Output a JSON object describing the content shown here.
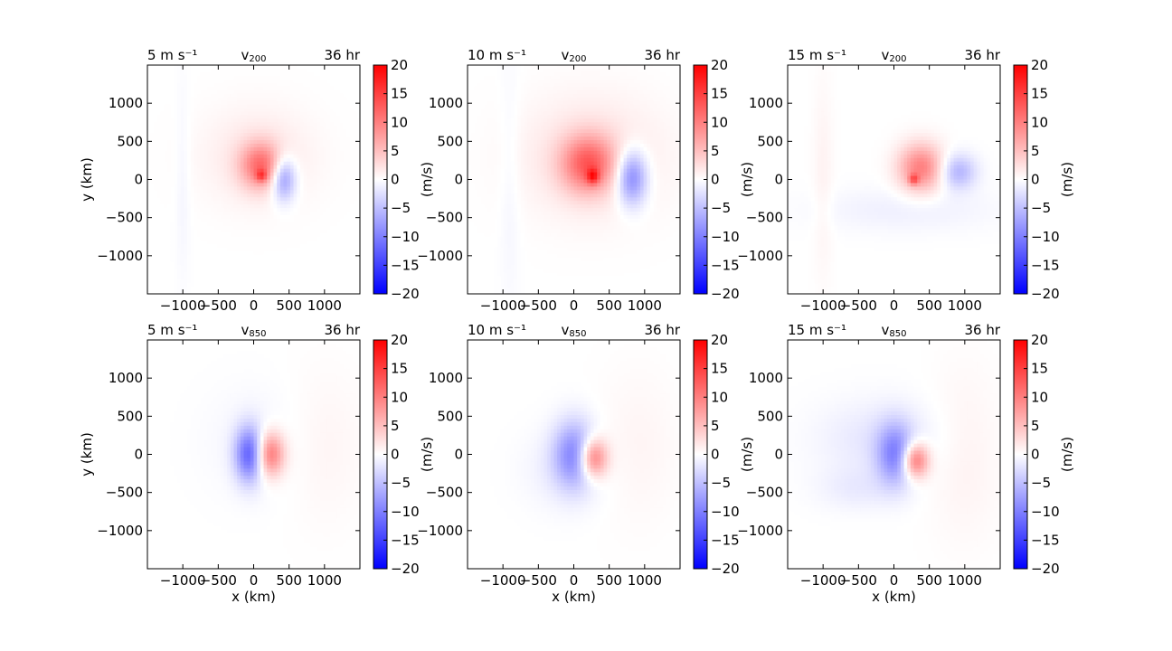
{
  "chart_data": {
    "type": "heatmap",
    "shared": {
      "x_ticks": [
        "−1000",
        "−500",
        "0",
        "500",
        "1000"
      ],
      "x_tick_values": [
        -1000,
        -500,
        0,
        500,
        1000
      ],
      "y_ticks": [
        "1000",
        "500",
        "0",
        "−500",
        "−1000"
      ],
      "y_tick_values": [
        1000,
        500,
        0,
        -500,
        -1000
      ],
      "xlim": [
        -1500,
        1500
      ],
      "ylim": [
        -1500,
        1500
      ],
      "xlabel": "x (km)",
      "ylabel": "y (km)",
      "colorbar_label": "(m/s)",
      "colorbar_ticks": [
        "20",
        "15",
        "10",
        "5",
        "0",
        "−5",
        "−10",
        "−15",
        "−20"
      ],
      "colorbar_tick_values": [
        20,
        15,
        10,
        5,
        0,
        -5,
        -10,
        -15,
        -20
      ],
      "colorbar_range": [
        -20,
        20
      ],
      "colormap": "bwr",
      "color_negative": "#0000ff",
      "color_zero": "#ffffff",
      "color_positive": "#ff0000"
    },
    "panels": [
      {
        "left_title": "5 m s⁻¹",
        "center_title_base": "v",
        "center_title_sub": "200",
        "right_title": "36 hr",
        "field": [
          {
            "x": 100,
            "y": 180,
            "sx": 200,
            "sy": 210,
            "a": 10
          },
          {
            "x": 110,
            "y": 50,
            "sx": 55,
            "sy": 55,
            "a": 7
          },
          {
            "x": 420,
            "y": 10,
            "sx": 120,
            "sy": 200,
            "a": -9
          },
          {
            "x": 60,
            "y": 300,
            "sx": 550,
            "sy": 450,
            "a": 2
          },
          {
            "x": -1000,
            "y": 0,
            "sx": 70,
            "sy": 900,
            "a": -0.8
          }
        ]
      },
      {
        "left_title": "10 m s⁻¹",
        "center_title_base": "v",
        "center_title_sub": "200",
        "right_title": "36 hr",
        "field": [
          {
            "x": 200,
            "y": 200,
            "sx": 260,
            "sy": 260,
            "a": 11
          },
          {
            "x": 270,
            "y": 40,
            "sx": 60,
            "sy": 70,
            "a": 9
          },
          {
            "x": 820,
            "y": 20,
            "sx": 150,
            "sy": 250,
            "a": -10
          },
          {
            "x": 250,
            "y": 300,
            "sx": 700,
            "sy": 550,
            "a": 2.5
          },
          {
            "x": -900,
            "y": 0,
            "sx": 100,
            "sy": 1100,
            "a": -0.8
          }
        ]
      },
      {
        "left_title": "15 m s⁻¹",
        "center_title_base": "v",
        "center_title_sub": "200",
        "right_title": "36 hr",
        "field": [
          {
            "x": 380,
            "y": 150,
            "sx": 220,
            "sy": 220,
            "a": 10
          },
          {
            "x": 280,
            "y": 0,
            "sx": 50,
            "sy": 50,
            "a": 8
          },
          {
            "x": 900,
            "y": 100,
            "sx": 180,
            "sy": 160,
            "a": -6
          },
          {
            "x": 150,
            "y": -400,
            "sx": 900,
            "sy": 200,
            "a": -1.2
          },
          {
            "x": -1000,
            "y": 0,
            "sx": 100,
            "sy": 900,
            "a": 1
          }
        ]
      },
      {
        "left_title": "5 m s⁻¹",
        "center_title_base": "v",
        "center_title_sub": "850",
        "right_title": "36 hr",
        "field": [
          {
            "x": -60,
            "y": 0,
            "sx": 140,
            "sy": 250,
            "a": -12
          },
          {
            "x": 230,
            "y": 0,
            "sx": 140,
            "sy": 200,
            "a": 11
          },
          {
            "x": 50,
            "y": 150,
            "sx": 500,
            "sy": 500,
            "a": -0.8
          },
          {
            "x": 1000,
            "y": 100,
            "sx": 400,
            "sy": 700,
            "a": 0.8
          }
        ]
      },
      {
        "left_title": "10 m s⁻¹",
        "center_title_base": "v",
        "center_title_sub": "850",
        "right_title": "36 hr",
        "field": [
          {
            "x": 10,
            "y": 0,
            "sx": 200,
            "sy": 300,
            "a": -9
          },
          {
            "x": 270,
            "y": -50,
            "sx": 140,
            "sy": 180,
            "a": 12
          },
          {
            "x": -100,
            "y": -200,
            "sx": 400,
            "sy": 350,
            "a": -1.5
          },
          {
            "x": 900,
            "y": 100,
            "sx": 400,
            "sy": 700,
            "a": 0.8
          }
        ]
      },
      {
        "left_title": "15 m s⁻¹",
        "center_title_base": "v",
        "center_title_sub": "850",
        "right_title": "36 hr",
        "field": [
          {
            "x": 20,
            "y": 0,
            "sx": 180,
            "sy": 280,
            "a": -9
          },
          {
            "x": 300,
            "y": -80,
            "sx": 130,
            "sy": 160,
            "a": 12
          },
          {
            "x": -200,
            "y": 200,
            "sx": 600,
            "sy": 350,
            "a": -2
          },
          {
            "x": -500,
            "y": -450,
            "sx": 400,
            "sy": 200,
            "a": -1.5
          },
          {
            "x": 1000,
            "y": 0,
            "sx": 350,
            "sy": 800,
            "a": 1
          }
        ]
      }
    ]
  }
}
